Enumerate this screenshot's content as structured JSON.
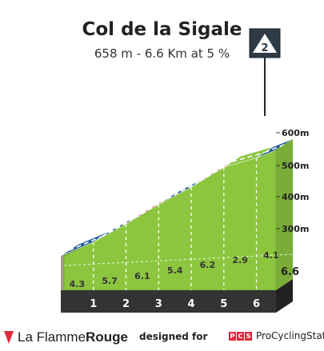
{
  "title": "Col de la Sigale",
  "subtitle": "658 m - 6.6 Km at 5 %",
  "category_badge": "2",
  "footer": {
    "brand_plain": "La Flamme",
    "brand_bold": "Rouge",
    "designed_for": "designed for",
    "pcs_letters": [
      "P",
      "C",
      "S"
    ],
    "pcs_name": "ProCyclingStats"
  },
  "colors": {
    "green": "#8cc63f",
    "blue": "#1f5a96",
    "red": "#e2283a",
    "base": "#333333",
    "start_face": "#a89a8c"
  },
  "chart_data": {
    "type": "area",
    "title": "Col de la Sigale",
    "subtitle": "658 m - 6.6 Km at 5 %",
    "x_unit": "km",
    "km_markers": [
      "1",
      "2",
      "3",
      "4",
      "5",
      "6"
    ],
    "end_distance_label": "6.6",
    "segments": [
      {
        "from_km": 0,
        "to_km": 1,
        "gradient": 4.3,
        "color": "blue"
      },
      {
        "from_km": 1,
        "to_km": 2,
        "gradient": 5.7,
        "color": "blue"
      },
      {
        "from_km": 2,
        "to_km": 3,
        "gradient": 6.1,
        "color": "red"
      },
      {
        "from_km": 3,
        "to_km": 4,
        "gradient": 5.4,
        "color": "blue"
      },
      {
        "from_km": 4,
        "to_km": 5,
        "gradient": 6.2,
        "color": "red"
      },
      {
        "from_km": 5,
        "to_km": 6,
        "gradient": 2.9,
        "color": "green"
      },
      {
        "from_km": 6,
        "to_km": 6.6,
        "gradient": 4.1,
        "color": "blue"
      }
    ],
    "gradient_labels": [
      "4.3",
      "5.7",
      "6.1",
      "5.4",
      "6.2",
      "2.9",
      "4.1"
    ],
    "elevation_ticks": [
      {
        "value": 300,
        "label": "300m"
      },
      {
        "value": 400,
        "label": "400m"
      },
      {
        "value": 500,
        "label": "500m"
      },
      {
        "value": 600,
        "label": "600m"
      }
    ]
  }
}
